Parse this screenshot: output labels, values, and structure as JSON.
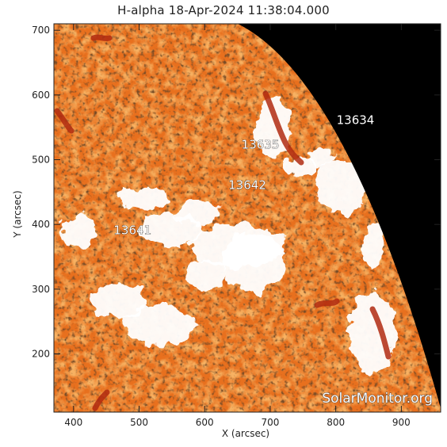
{
  "title": "H-alpha 18-Apr-2024 11:38:04.000",
  "xlabel": "X (arcsec)",
  "ylabel": "Y (arcsec)",
  "x_axis": {
    "range": [
      370,
      960
    ],
    "ticks": [
      "400",
      "500",
      "600",
      "700",
      "800",
      "900"
    ]
  },
  "y_axis": {
    "range": [
      110,
      710
    ],
    "ticks": [
      "200",
      "300",
      "400",
      "500",
      "600",
      "700"
    ]
  },
  "regions": [
    {
      "label": "13634",
      "x": 830,
      "y": 555
    },
    {
      "label": "13635",
      "x": 685,
      "y": 517
    },
    {
      "label": "13642",
      "x": 665,
      "y": 455
    },
    {
      "label": "13641",
      "x": 490,
      "y": 385
    }
  ],
  "watermark": "SolarMonitor.org",
  "colors": {
    "disk_base": "#e8701e",
    "disk_bright": "#ffffff",
    "disk_dark": "#3a1a08",
    "space": "#000000"
  }
}
